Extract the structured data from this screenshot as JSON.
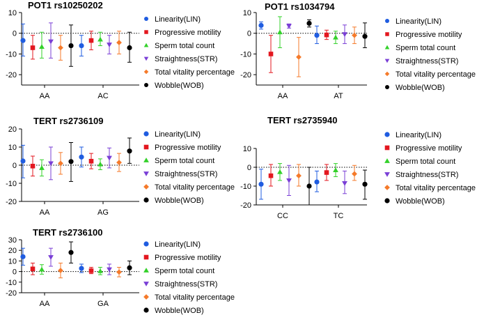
{
  "legend_labels": [
    "Linearity(LIN)",
    "Progressive motility",
    "Sperm total count",
    "Straightness(STR)",
    "Total vitality percentage",
    "Wobble(WOB)"
  ],
  "colors": {
    "lin": "#1f5ce0",
    "prog": "#e3171f",
    "count": "#33d12a",
    "str": "#7a3fd6",
    "vit": "#f57a2a",
    "wob": "#000000"
  },
  "chart_data": [
    {
      "type": "scatter",
      "title": "POT1 rs10250202",
      "categories": [
        "AA",
        "AC"
      ],
      "ylim": [
        -25,
        10
      ],
      "yticks": [
        -20,
        -10,
        0,
        10
      ],
      "series": [
        {
          "name": "Linearity(LIN)",
          "values": [
            {
              "y": -3.5,
              "lo": -11,
              "hi": 4.5
            },
            {
              "y": -6,
              "lo": -11,
              "hi": -1
            }
          ]
        },
        {
          "name": "Progressive motility",
          "values": [
            {
              "y": -7,
              "lo": -12.5,
              "hi": -1
            },
            {
              "y": -3.5,
              "lo": -8,
              "hi": 1
            }
          ]
        },
        {
          "name": "Sperm total count",
          "values": [
            {
              "y": -6.5,
              "lo": -12,
              "hi": 0.5
            },
            {
              "y": -3,
              "lo": -6,
              "hi": 0.5
            }
          ]
        },
        {
          "name": "Straightness(STR)",
          "values": [
            {
              "y": -4,
              "lo": -12,
              "hi": 5
            },
            {
              "y": -5.5,
              "lo": -10,
              "hi": -1
            }
          ]
        },
        {
          "name": "Total vitality percentage",
          "values": [
            {
              "y": -7,
              "lo": -13,
              "hi": -1
            },
            {
              "y": -4.5,
              "lo": -10,
              "hi": 1
            }
          ]
        },
        {
          "name": "Wobble(WOB)",
          "values": [
            {
              "y": -6,
              "lo": -16,
              "hi": 4
            },
            {
              "y": -7,
              "lo": -14,
              "hi": 0.5
            }
          ]
        }
      ]
    },
    {
      "type": "scatter",
      "title": "POT1 rs1034794",
      "categories": [
        "AA",
        "AT"
      ],
      "ylim": [
        -25,
        10
      ],
      "yticks": [
        -20,
        -10,
        0,
        10
      ],
      "series": [
        {
          "name": "Linearity(LIN)",
          "values": [
            {
              "y": 3.8,
              "lo": 2,
              "hi": 5.5
            },
            {
              "y": -1,
              "lo": -5,
              "hi": 3.5
            }
          ]
        },
        {
          "name": "Progressive motility",
          "values": [
            {
              "y": -10,
              "lo": -19,
              "hi": -1
            },
            {
              "y": -0.8,
              "lo": -3,
              "hi": 1.5
            }
          ]
        },
        {
          "name": "Sperm total count",
          "values": [
            {
              "y": 0.5,
              "lo": -7,
              "hi": 8
            },
            {
              "y": -2,
              "lo": -5,
              "hi": 1
            }
          ]
        },
        {
          "name": "Straightness(STR)",
          "values": [
            {
              "y": 3.5,
              "lo": 2.5,
              "hi": 4.5
            },
            {
              "y": -0.5,
              "lo": -5,
              "hi": 4
            }
          ]
        },
        {
          "name": "Total vitality percentage",
          "values": [
            {
              "y": -11.5,
              "lo": -21,
              "hi": -2
            },
            {
              "y": -1,
              "lo": -5,
              "hi": 3
            }
          ]
        },
        {
          "name": "Wobble(WOB)",
          "values": [
            {
              "y": 4.8,
              "lo": 3,
              "hi": 6.5
            },
            {
              "y": -1.5,
              "lo": -7,
              "hi": 5
            }
          ]
        }
      ]
    },
    {
      "type": "scatter",
      "title": "TERT rs2736109",
      "categories": [
        "AA",
        "AG"
      ],
      "ylim": [
        -20,
        20
      ],
      "yticks": [
        -20,
        -10,
        0,
        10,
        20
      ],
      "series": [
        {
          "name": "Linearity(LIN)",
          "values": [
            {
              "y": 2.3,
              "lo": -7,
              "hi": 11
            },
            {
              "y": 4.5,
              "lo": -1,
              "hi": 10
            }
          ]
        },
        {
          "name": "Progressive motility",
          "values": [
            {
              "y": -0.5,
              "lo": -6,
              "hi": 5
            },
            {
              "y": 2.2,
              "lo": -2,
              "hi": 6.5
            }
          ]
        },
        {
          "name": "Sperm total count",
          "values": [
            {
              "y": -1.5,
              "lo": -6,
              "hi": 3
            },
            {
              "y": 0.5,
              "lo": -2.5,
              "hi": 3.5
            }
          ]
        },
        {
          "name": "Straightness(STR)",
          "values": [
            {
              "y": 1,
              "lo": -8,
              "hi": 10
            },
            {
              "y": 4,
              "lo": -1.5,
              "hi": 9.5
            }
          ]
        },
        {
          "name": "Total vitality percentage",
          "values": [
            {
              "y": 1,
              "lo": -5,
              "hi": 7
            },
            {
              "y": 1.5,
              "lo": -3.5,
              "hi": 6.5
            }
          ]
        },
        {
          "name": "Wobble(WOB)",
          "values": [
            {
              "y": 2,
              "lo": -9,
              "hi": 12.5
            },
            {
              "y": 7.8,
              "lo": 1,
              "hi": 15
            }
          ]
        }
      ]
    },
    {
      "type": "scatter",
      "title": "TERT rs2735940",
      "categories": [
        "CC",
        "TC"
      ],
      "ylim": [
        -20,
        10
      ],
      "yticks": [
        -20,
        -10,
        0,
        10
      ],
      "series": [
        {
          "name": "Linearity(LIN)",
          "values": [
            {
              "y": -9,
              "lo": -17,
              "hi": -1
            },
            {
              "y": -7.8,
              "lo": -13,
              "hi": -2
            }
          ]
        },
        {
          "name": "Progressive motility",
          "values": [
            {
              "y": -4.5,
              "lo": -10,
              "hi": 1.5
            },
            {
              "y": -2.8,
              "lo": -7,
              "hi": 1.5
            }
          ]
        },
        {
          "name": "Sperm total count",
          "values": [
            {
              "y": -2.5,
              "lo": -7,
              "hi": 2
            },
            {
              "y": -1.5,
              "lo": -5,
              "hi": 2
            }
          ]
        },
        {
          "name": "Straightness(STR)",
          "values": [
            {
              "y": -7,
              "lo": -15,
              "hi": 1
            },
            {
              "y": -8.5,
              "lo": -14,
              "hi": -2
            }
          ]
        },
        {
          "name": "Total vitality percentage",
          "values": [
            {
              "y": -4.5,
              "lo": -10,
              "hi": 1.5
            },
            {
              "y": -3.5,
              "lo": -7,
              "hi": 1
            }
          ]
        },
        {
          "name": "Wobble(WOB)",
          "values": [
            {
              "y": -10,
              "lo": -20,
              "hi": 0
            },
            {
              "y": -9,
              "lo": -17,
              "hi": -1.5
            }
          ]
        }
      ]
    },
    {
      "type": "scatter",
      "title": "TERT rs2736100",
      "categories": [
        "AA",
        "GA"
      ],
      "ylim": [
        -20,
        30
      ],
      "yticks": [
        -20,
        -10,
        0,
        10,
        20,
        30
      ],
      "series": [
        {
          "name": "Linearity(LIN)",
          "values": [
            {
              "y": 14,
              "lo": 6,
              "hi": 22
            },
            {
              "y": 3,
              "lo": -1,
              "hi": 7
            }
          ]
        },
        {
          "name": "Progressive motility",
          "values": [
            {
              "y": 2.5,
              "lo": -3,
              "hi": 8
            },
            {
              "y": 0.8,
              "lo": -2,
              "hi": 4
            }
          ]
        },
        {
          "name": "Sperm total count",
          "values": [
            {
              "y": 2,
              "lo": -2.5,
              "hi": 6.5
            },
            {
              "y": 0.5,
              "lo": -3,
              "hi": 4
            }
          ]
        },
        {
          "name": "Straightness(STR)",
          "values": [
            {
              "y": 13.5,
              "lo": 5,
              "hi": 22
            },
            {
              "y": 2,
              "lo": -3,
              "hi": 7
            }
          ]
        },
        {
          "name": "Total vitality percentage",
          "values": [
            {
              "y": 1,
              "lo": -6,
              "hi": 8
            },
            {
              "y": -0.5,
              "lo": -5,
              "hi": 4
            }
          ]
        },
        {
          "name": "Wobble(WOB)",
          "values": [
            {
              "y": 18,
              "lo": 8,
              "hi": 28
            },
            {
              "y": 3.5,
              "lo": -3,
              "hi": 10
            }
          ]
        }
      ]
    }
  ]
}
